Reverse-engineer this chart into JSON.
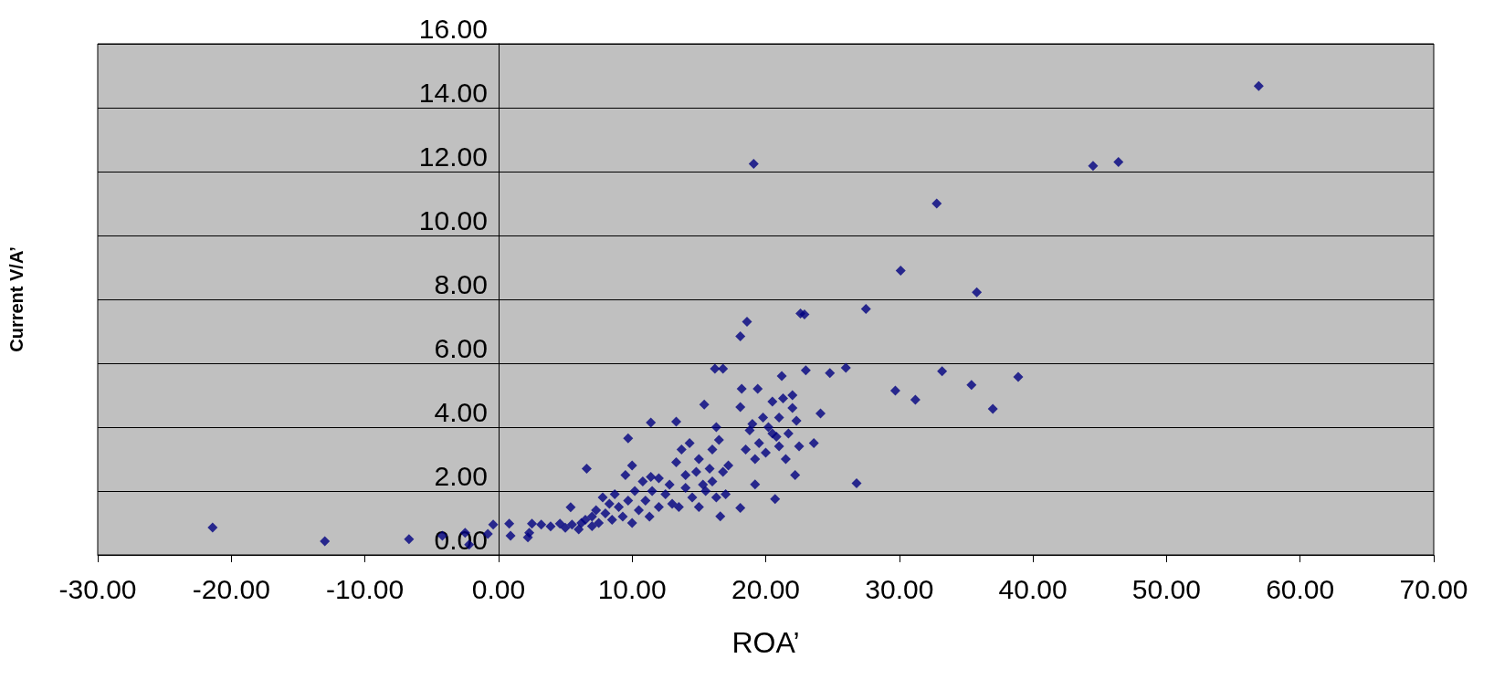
{
  "chart_data": {
    "type": "scatter",
    "xlabel": "ROA’",
    "ylabel": "Current V/A’",
    "grid": "y",
    "marker": "diamond",
    "xlim": [
      -30,
      70
    ],
    "ylim": [
      0,
      16
    ],
    "xticks": [
      {
        "value": -30,
        "label": "-30.00"
      },
      {
        "value": -20,
        "label": "-20.00"
      },
      {
        "value": -10,
        "label": "-10.00"
      },
      {
        "value": 0,
        "label": "0.00"
      },
      {
        "value": 10,
        "label": "10.00"
      },
      {
        "value": 20,
        "label": "20.00"
      },
      {
        "value": 30,
        "label": "30.00"
      },
      {
        "value": 40,
        "label": "40.00"
      },
      {
        "value": 50,
        "label": "50.00"
      },
      {
        "value": 60,
        "label": "60.00"
      },
      {
        "value": 70,
        "label": "70.00"
      }
    ],
    "yticks": [
      {
        "value": 0,
        "label": "0.00"
      },
      {
        "value": 2,
        "label": "2.00"
      },
      {
        "value": 4,
        "label": "4.00"
      },
      {
        "value": 6,
        "label": "6.00"
      },
      {
        "value": 8,
        "label": "8.00"
      },
      {
        "value": 10,
        "label": "10.00"
      },
      {
        "value": 12,
        "label": "12.00"
      },
      {
        "value": 14,
        "label": "14.00"
      },
      {
        "value": 16,
        "label": "16.00"
      }
    ],
    "series": [
      {
        "color": "#000080",
        "x": [
          -21.4,
          -13,
          -6.7,
          -4.2,
          -2.5,
          -2.2,
          -0.8,
          -0.4,
          0.8,
          0.9,
          2.3,
          2.2,
          2.5,
          3.2,
          3.9,
          4.6,
          5.4,
          6.6,
          9.7,
          11.4,
          11.4,
          13.3,
          15.4,
          16.8,
          16.2,
          16.3,
          16.6,
          18.1,
          18.1,
          18.2,
          18.1,
          18.6,
          19.1,
          19.2,
          19.4,
          20.7,
          21.2,
          22.2,
          22.6,
          22.9,
          23,
          23.6,
          24.1,
          24.8,
          26,
          26.8,
          27.5,
          29.7,
          30.1,
          31.2,
          32.8,
          33.2,
          35.4,
          35.8,
          37,
          38.9,
          44.5,
          46.4,
          56.9,
          5,
          5.5,
          6,
          6.2,
          6.5,
          7,
          7,
          7.3,
          7.5,
          7.8,
          8,
          8.3,
          8.5,
          8.7,
          9,
          9.3,
          9.5,
          9.7,
          10,
          10,
          10.2,
          10.5,
          10.8,
          11,
          11.3,
          11.5,
          12,
          12,
          12.5,
          12.8,
          13,
          13.3,
          13.5,
          13.7,
          14,
          14,
          14.3,
          14.5,
          14.8,
          15,
          15,
          15.3,
          15.5,
          15.8,
          16,
          16,
          16.3,
          16.5,
          16.8,
          17,
          17.2,
          18.5,
          18.8,
          19,
          19.5,
          19.8,
          20,
          20.2,
          20.5,
          20.8,
          21,
          21,
          21.3,
          21.5,
          21.7,
          22,
          22,
          22.3,
          22.5,
          19.2,
          20.5
        ],
        "values": [
          0.86,
          0.43,
          0.49,
          0.6,
          0.69,
          0.32,
          0.66,
          0.95,
          0.98,
          0.6,
          0.69,
          0.55,
          0.98,
          0.95,
          0.89,
          0.98,
          1.49,
          2.7,
          3.65,
          4.14,
          2.44,
          4.17,
          4.71,
          5.83,
          5.83,
          4,
          1.21,
          1.47,
          4.63,
          5.2,
          6.84,
          7.3,
          12.24,
          2.21,
          5.2,
          1.75,
          5.6,
          2.5,
          7.56,
          7.53,
          5.78,
          3.5,
          4.43,
          5.69,
          5.86,
          2.24,
          7.7,
          5.14,
          8.9,
          4.86,
          11,
          5.75,
          5.32,
          8.22,
          4.57,
          5.57,
          12.18,
          12.3,
          14.68,
          0.85,
          0.95,
          0.8,
          1,
          1.1,
          0.9,
          1.2,
          1.4,
          1,
          1.8,
          1.3,
          1.6,
          1.1,
          1.9,
          1.5,
          1.2,
          2.5,
          1.7,
          2.8,
          1,
          2,
          1.4,
          2.3,
          1.7,
          1.2,
          2,
          2.4,
          1.5,
          1.9,
          2.2,
          1.6,
          2.9,
          1.5,
          3.3,
          2.1,
          2.5,
          3.5,
          1.8,
          2.6,
          1.5,
          3,
          2.2,
          2,
          2.7,
          3.3,
          2.3,
          1.8,
          3.6,
          2.6,
          1.9,
          2.8,
          3.3,
          3.9,
          4.1,
          3.5,
          4.3,
          3.2,
          4,
          4.8,
          3.7,
          4.3,
          3.4,
          4.9,
          3,
          3.8,
          4.6,
          5,
          4.2,
          3.4,
          3,
          3.8
        ]
      }
    ]
  }
}
